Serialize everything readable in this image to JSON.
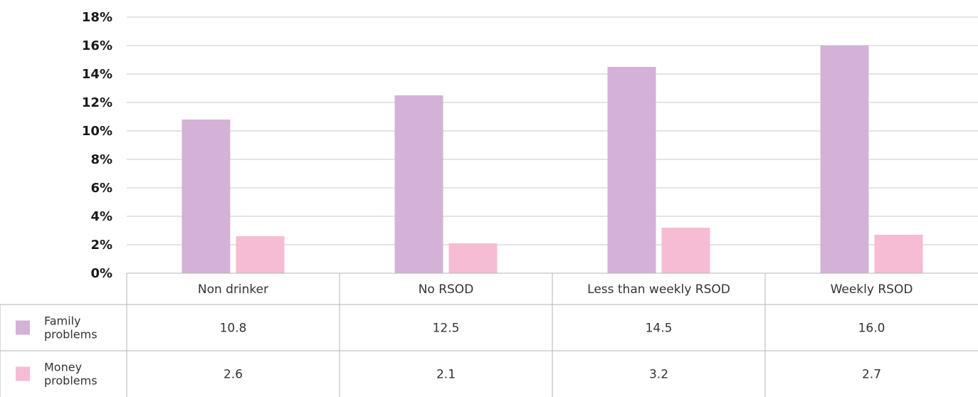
{
  "chart_data": {
    "type": "bar",
    "categories": [
      "Non drinker",
      "No RSOD",
      "Less than weekly RSOD",
      "Weekly RSOD"
    ],
    "series": [
      {
        "name": "Family problems",
        "values": [
          10.8,
          12.5,
          14.5,
          16.0
        ],
        "color": "#d4b2d8",
        "label_lines": [
          "Family",
          "problems"
        ]
      },
      {
        "name": "Money problems",
        "values": [
          2.6,
          2.1,
          3.2,
          2.7
        ],
        "color": "#f5bcd4",
        "label_lines": [
          "Money",
          "problems"
        ]
      }
    ],
    "ylim": [
      0,
      18
    ],
    "yticks": [
      "0%",
      "2%",
      "4%",
      "6%",
      "8%",
      "10%",
      "12%",
      "14%",
      "16%",
      "18%"
    ],
    "grid": true,
    "legend": "data-table"
  }
}
